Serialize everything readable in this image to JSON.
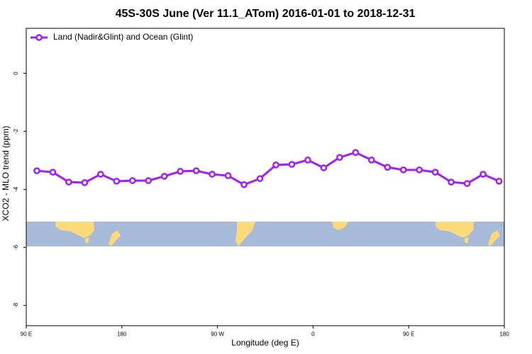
{
  "chart_data": {
    "type": "line",
    "title": "45S-30S June (Ver 11.1_ATom)   2016-01-01 to 2018-12-31",
    "xlabel": "Longitude (deg E)",
    "ylabel": "XCO2 - MLO trend (ppm)",
    "x": [
      100,
      115,
      130,
      145,
      160,
      175,
      190,
      205,
      220,
      235,
      250,
      265,
      280,
      295,
      310,
      325,
      340,
      355,
      370,
      385,
      400,
      415,
      430,
      445,
      460,
      475,
      490,
      505,
      520,
      535
    ],
    "series": [
      {
        "name": "Land (Nadir&Glint) and Ocean (Glint)",
        "color": "#a020f0",
        "values": [
          -3.36,
          -3.41,
          -3.75,
          -3.77,
          -3.48,
          -3.72,
          -3.7,
          -3.7,
          -3.55,
          -3.38,
          -3.36,
          -3.48,
          -3.53,
          -3.84,
          -3.63,
          -3.16,
          -3.14,
          -2.99,
          -3.26,
          -2.9,
          -2.73,
          -2.99,
          -3.24,
          -3.33,
          -3.33,
          -3.41,
          -3.75,
          -3.8,
          -3.48,
          -3.72
        ]
      }
    ],
    "xlim": [
      90,
      540
    ],
    "xticks": [
      {
        "value": 90,
        "label": "90 E"
      },
      180,
      {
        "value": 270,
        "label": "90 W"
      },
      {
        "value": 360,
        "label": "0"
      },
      {
        "value": 450,
        "label": "90 E"
      },
      {
        "value": 540,
        "label": "180"
      }
    ],
    "ylim": [
      -8.7,
      1.55
    ],
    "yticks": [
      0,
      -2,
      -4,
      -6,
      -8
    ],
    "legend": "top-left",
    "grid": false
  }
}
